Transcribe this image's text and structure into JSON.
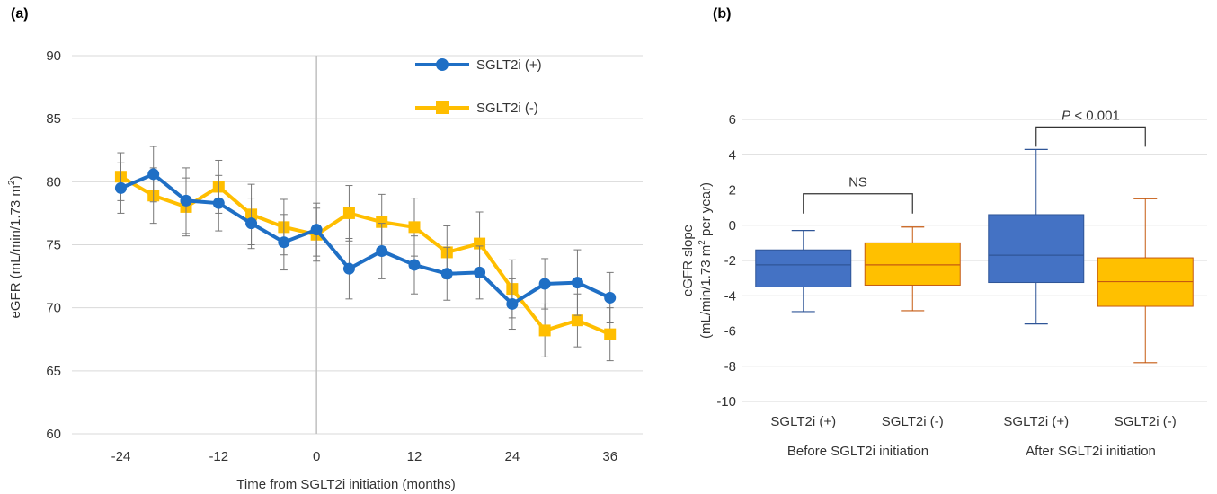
{
  "panel_a": {
    "panel_label": "(a)",
    "chart_data": {
      "type": "line",
      "xlabel": "Time from SGLT2i initiation (months)",
      "ylabel_main": "eGFR (mL/min/1.73 m",
      "ylabel_sup": "2",
      "ylabel_end": ")",
      "xlim": [
        -30,
        40
      ],
      "ylim": [
        60,
        90
      ],
      "x_ticks": [
        -24,
        -12,
        0,
        12,
        24,
        36
      ],
      "y_ticks": [
        60,
        65,
        70,
        75,
        80,
        85,
        90
      ],
      "grid": true,
      "legend_position": "top-right",
      "reference_line_x": 0,
      "series": [
        {
          "name": "SGLT2i (+)",
          "color": "#1f6fc5",
          "marker": "circle",
          "x": [
            -24,
            -20,
            -16,
            -12,
            -8,
            -4,
            0,
            4,
            8,
            12,
            16,
            20,
            24,
            28,
            32,
            36
          ],
          "y": [
            79.5,
            80.6,
            78.5,
            78.3,
            76.7,
            75.2,
            76.2,
            73.1,
            74.5,
            73.4,
            72.7,
            72.8,
            70.3,
            71.9,
            72.0,
            70.8
          ],
          "err": [
            2.0,
            2.2,
            2.6,
            2.2,
            2.0,
            2.2,
            2.1,
            2.4,
            2.2,
            2.3,
            2.1,
            2.1,
            2.0,
            2.0,
            2.6,
            2.0
          ]
        },
        {
          "name": "SGLT2i (-)",
          "color": "#ffbe00",
          "marker": "square",
          "x": [
            -24,
            -20,
            -16,
            -12,
            -8,
            -4,
            0,
            4,
            8,
            12,
            16,
            20,
            24,
            28,
            32,
            36
          ],
          "y": [
            80.4,
            78.9,
            78.0,
            79.6,
            77.4,
            76.4,
            75.8,
            77.5,
            76.8,
            76.4,
            74.4,
            75.1,
            71.5,
            68.2,
            69.0,
            67.9
          ],
          "err": [
            1.9,
            2.2,
            2.3,
            2.1,
            2.4,
            2.2,
            2.1,
            2.2,
            2.2,
            2.3,
            2.1,
            2.5,
            2.3,
            2.1,
            2.1,
            2.1
          ]
        }
      ]
    }
  },
  "panel_b": {
    "panel_label": "(b)",
    "chart_data": {
      "type": "box",
      "ylabel_line1": "eGFR slope",
      "ylabel_line2_pre": "(mL/min/1.73 m",
      "ylabel_line2_sup": "2",
      "ylabel_line2_post": " per year)",
      "ylim": [
        -10,
        6
      ],
      "y_ticks": [
        -10,
        -8,
        -6,
        -4,
        -2,
        0,
        2,
        4,
        6
      ],
      "grid": true,
      "groups": [
        {
          "name": "Before SGLT2i initiation",
          "comparison": "NS",
          "boxes": [
            {
              "label": "SGLT2i (+)",
              "color": "#4472c4",
              "edge": "#2f5597",
              "min": -4.9,
              "q1": -3.5,
              "median": -2.25,
              "q3": -1.4,
              "max": -0.3
            },
            {
              "label": "SGLT2i (-)",
              "color": "#ffc000",
              "edge": "#c55a11",
              "min": -4.85,
              "q1": -3.4,
              "median": -2.25,
              "q3": -1.0,
              "max": -0.1
            }
          ]
        },
        {
          "name": "After SGLT2i initiation",
          "comparison_italic": "P",
          "comparison_rest": " < 0.001",
          "boxes": [
            {
              "label": "SGLT2i (+)",
              "color": "#4472c4",
              "edge": "#2f5597",
              "min": -5.6,
              "q1": -3.25,
              "median": -1.7,
              "q3": 0.6,
              "max": 4.3
            },
            {
              "label": "SGLT2i (-)",
              "color": "#ffc000",
              "edge": "#c55a11",
              "min": -7.8,
              "q1": -4.6,
              "median": -3.2,
              "q3": -1.85,
              "max": 1.5
            }
          ]
        }
      ]
    }
  }
}
